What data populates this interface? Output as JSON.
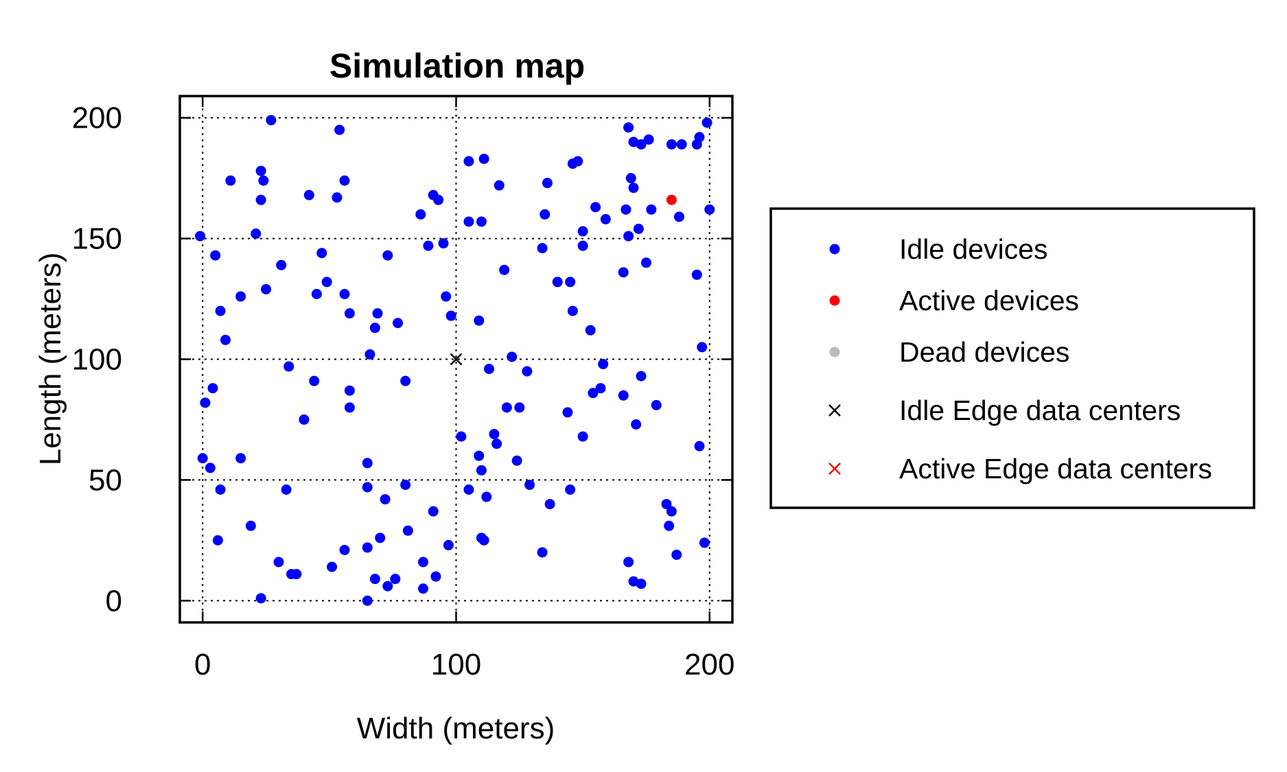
{
  "chart_data": {
    "type": "scatter",
    "title": "Simulation map",
    "xlabel": "Width (meters)",
    "ylabel": "Length (meters)",
    "xlim": [
      -9,
      209
    ],
    "ylim": [
      -9,
      209
    ],
    "xticks": [
      0,
      100,
      200
    ],
    "yticks": [
      0,
      50,
      100,
      150,
      200
    ],
    "grid": true,
    "legend_position": "right",
    "colors": {
      "idle_devices": "#0000ff",
      "active_devices": "#ff0000",
      "dead_devices": "#bbbbbb",
      "idle_edge": "#000000",
      "active_edge": "#ff0000"
    },
    "legend": [
      {
        "label": "Idle devices",
        "marker": "dot",
        "color": "#0000ff"
      },
      {
        "label": "Active devices",
        "marker": "dot",
        "color": "#ff0000"
      },
      {
        "label": "Dead devices",
        "marker": "dot",
        "color": "#bbbbbb"
      },
      {
        "label": "Idle Edge data centers",
        "marker": "x",
        "color": "#000000"
      },
      {
        "label": "Active Edge data centers",
        "marker": "x",
        "color": "#ff0000"
      }
    ],
    "series": [
      {
        "name": "Idle devices",
        "marker": "dot",
        "color": "#0000ff",
        "points": [
          [
            27,
            199
          ],
          [
            54,
            195
          ],
          [
            11,
            174
          ],
          [
            23,
            178
          ],
          [
            24,
            174
          ],
          [
            23,
            166
          ],
          [
            42,
            168
          ],
          [
            53,
            167
          ],
          [
            56,
            174
          ],
          [
            -1,
            151
          ],
          [
            5,
            143
          ],
          [
            21,
            152
          ],
          [
            31,
            139
          ],
          [
            25,
            129
          ],
          [
            15,
            126
          ],
          [
            7,
            120
          ],
          [
            9,
            108
          ],
          [
            47,
            144
          ],
          [
            49,
            132
          ],
          [
            45,
            127
          ],
          [
            56,
            127
          ],
          [
            58,
            119
          ],
          [
            69,
            119
          ],
          [
            68,
            113
          ],
          [
            66,
            102
          ],
          [
            73,
            143
          ],
          [
            77,
            115
          ],
          [
            34,
            97
          ],
          [
            44,
            91
          ],
          [
            58,
            87
          ],
          [
            58,
            80
          ],
          [
            40,
            75
          ],
          [
            4,
            88
          ],
          [
            1,
            82
          ],
          [
            0,
            59
          ],
          [
            3,
            55
          ],
          [
            7,
            46
          ],
          [
            6,
            25
          ],
          [
            19,
            31
          ],
          [
            15,
            59
          ],
          [
            23,
            1
          ],
          [
            30,
            16
          ],
          [
            35,
            11
          ],
          [
            37,
            11
          ],
          [
            33,
            46
          ],
          [
            51,
            14
          ],
          [
            56,
            21
          ],
          [
            65,
            57
          ],
          [
            65,
            47
          ],
          [
            72,
            42
          ],
          [
            70,
            26
          ],
          [
            65,
            22
          ],
          [
            68,
            9
          ],
          [
            73,
            6
          ],
          [
            76,
            9
          ],
          [
            65,
            0
          ],
          [
            80,
            91
          ],
          [
            80,
            48
          ],
          [
            81,
            29
          ],
          [
            86,
            160
          ],
          [
            89,
            147
          ],
          [
            91,
            168
          ],
          [
            93,
            166
          ],
          [
            95,
            148
          ],
          [
            96,
            126
          ],
          [
            98,
            118
          ],
          [
            87,
            16
          ],
          [
            91,
            37
          ],
          [
            87,
            5
          ],
          [
            92,
            10
          ],
          [
            97,
            23
          ],
          [
            105,
            182
          ],
          [
            111,
            183
          ],
          [
            105,
            157
          ],
          [
            110,
            157
          ],
          [
            117,
            172
          ],
          [
            119,
            137
          ],
          [
            109,
            116
          ],
          [
            113,
            96
          ],
          [
            122,
            101
          ],
          [
            120,
            80
          ],
          [
            125,
            80
          ],
          [
            128,
            95
          ],
          [
            102,
            68
          ],
          [
            115,
            69
          ],
          [
            116,
            65
          ],
          [
            109,
            60
          ],
          [
            110,
            54
          ],
          [
            105,
            46
          ],
          [
            112,
            43
          ],
          [
            124,
            58
          ],
          [
            129,
            48
          ],
          [
            110,
            26
          ],
          [
            111,
            25
          ],
          [
            136,
            173
          ],
          [
            135,
            160
          ],
          [
            134,
            146
          ],
          [
            140,
            132
          ],
          [
            145,
            132
          ],
          [
            146,
            120
          ],
          [
            146,
            181
          ],
          [
            148,
            182
          ],
          [
            150,
            153
          ],
          [
            150,
            147
          ],
          [
            153,
            112
          ],
          [
            155,
            163
          ],
          [
            159,
            158
          ],
          [
            144,
            78
          ],
          [
            154,
            86
          ],
          [
            157,
            88
          ],
          [
            158,
            98
          ],
          [
            150,
            68
          ],
          [
            137,
            40
          ],
          [
            145,
            46
          ],
          [
            134,
            20
          ],
          [
            168,
            196
          ],
          [
            170,
            190
          ],
          [
            173,
            189
          ],
          [
            176,
            191
          ],
          [
            169,
            175
          ],
          [
            170,
            171
          ],
          [
            167,
            162
          ],
          [
            168,
            151
          ],
          [
            172,
            154
          ],
          [
            177,
            162
          ],
          [
            166,
            136
          ],
          [
            175,
            140
          ],
          [
            166,
            85
          ],
          [
            173,
            93
          ],
          [
            171,
            73
          ],
          [
            179,
            81
          ],
          [
            183,
            40
          ],
          [
            185,
            37
          ],
          [
            184,
            31
          ],
          [
            187,
            19
          ],
          [
            168,
            16
          ],
          [
            170,
            8
          ],
          [
            173,
            7
          ],
          [
            185,
            189
          ],
          [
            189,
            189
          ],
          [
            195,
            189
          ],
          [
            196,
            192
          ],
          [
            199,
            198
          ],
          [
            188,
            159
          ],
          [
            200,
            162
          ],
          [
            195,
            135
          ],
          [
            197,
            105
          ],
          [
            196,
            64
          ],
          [
            198,
            24
          ]
        ]
      },
      {
        "name": "Active devices",
        "marker": "dot",
        "color": "#ff0000",
        "points": [
          [
            185,
            166
          ]
        ]
      },
      {
        "name": "Idle Edge data centers",
        "marker": "x",
        "color": "#000000",
        "points": [
          [
            100,
            100
          ]
        ]
      }
    ]
  }
}
